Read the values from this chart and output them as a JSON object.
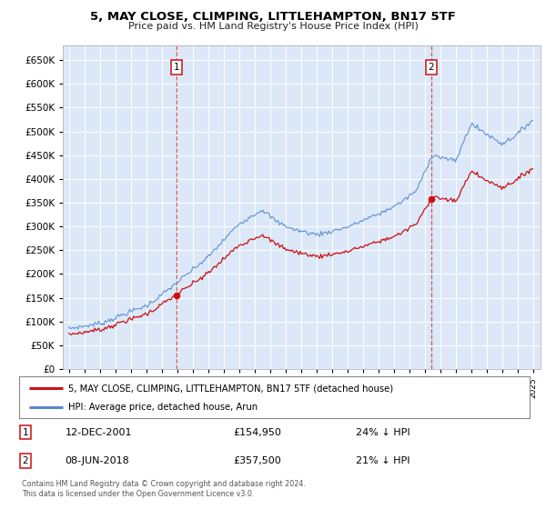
{
  "title": "5, MAY CLOSE, CLIMPING, LITTLEHAMPTON, BN17 5TF",
  "subtitle": "Price paid vs. HM Land Registry's House Price Index (HPI)",
  "background_color": "#dce8f8",
  "plot_bg_color": "#dce8f8",
  "hpi_line_color": "#5588cc",
  "price_line_color": "#cc1111",
  "marker1_x": 2001.958,
  "marker1_label": "1",
  "marker1_price": 154950,
  "marker2_x": 2018.44,
  "marker2_label": "2",
  "marker2_price": 357500,
  "legend_label1": "5, MAY CLOSE, CLIMPING, LITTLEHAMPTON, BN17 5TF (detached house)",
  "legend_label2": "HPI: Average price, detached house, Arun",
  "note1_label": "1",
  "note1_date": "12-DEC-2001",
  "note1_price": "£154,950",
  "note1_hpi": "24% ↓ HPI",
  "note2_label": "2",
  "note2_date": "08-JUN-2018",
  "note2_price": "£357,500",
  "note2_hpi": "21% ↓ HPI",
  "copyright": "Contains HM Land Registry data © Crown copyright and database right 2024.\nThis data is licensed under the Open Government Licence v3.0.",
  "ylim_min": 0,
  "ylim_max": 680000,
  "xlim_min": 1994.6,
  "xlim_max": 2025.5
}
